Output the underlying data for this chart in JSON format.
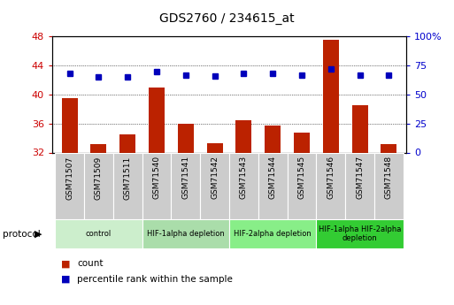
{
  "title": "GDS2760 / 234615_at",
  "samples": [
    "GSM71507",
    "GSM71509",
    "GSM71511",
    "GSM71540",
    "GSM71541",
    "GSM71542",
    "GSM71543",
    "GSM71544",
    "GSM71545",
    "GSM71546",
    "GSM71547",
    "GSM71548"
  ],
  "count_values": [
    39.5,
    33.2,
    34.5,
    41.0,
    36.0,
    33.3,
    36.5,
    35.7,
    34.8,
    47.5,
    38.5,
    33.2
  ],
  "percentile_values": [
    68,
    65,
    65,
    70,
    67,
    66,
    68,
    68,
    67,
    72,
    67,
    67
  ],
  "ylim_left": [
    32,
    48
  ],
  "ylim_right": [
    0,
    100
  ],
  "yticks_left": [
    32,
    36,
    40,
    44,
    48
  ],
  "yticks_right": [
    0,
    25,
    50,
    75,
    100
  ],
  "bar_color": "#bb2200",
  "dot_color": "#0000bb",
  "bar_width": 0.55,
  "groups": [
    {
      "label": "control",
      "start": 0,
      "end": 3,
      "color": "#cceecc"
    },
    {
      "label": "HIF-1alpha depletion",
      "start": 3,
      "end": 6,
      "color": "#aaddaa"
    },
    {
      "label": "HIF-2alpha depletion",
      "start": 6,
      "end": 9,
      "color": "#88ee88"
    },
    {
      "label": "HIF-1alpha HIF-2alpha\ndepletion",
      "start": 9,
      "end": 12,
      "color": "#33cc33"
    }
  ],
  "protocol_label": "protocol",
  "legend_count": "count",
  "legend_percentile": "percentile rank within the sample",
  "grid_color": "#000000",
  "tick_label_color_left": "#cc0000",
  "tick_label_color_right": "#0000cc",
  "background_plot": "#ffffff",
  "xtick_bg": "#cccccc",
  "border_color": "#999999"
}
